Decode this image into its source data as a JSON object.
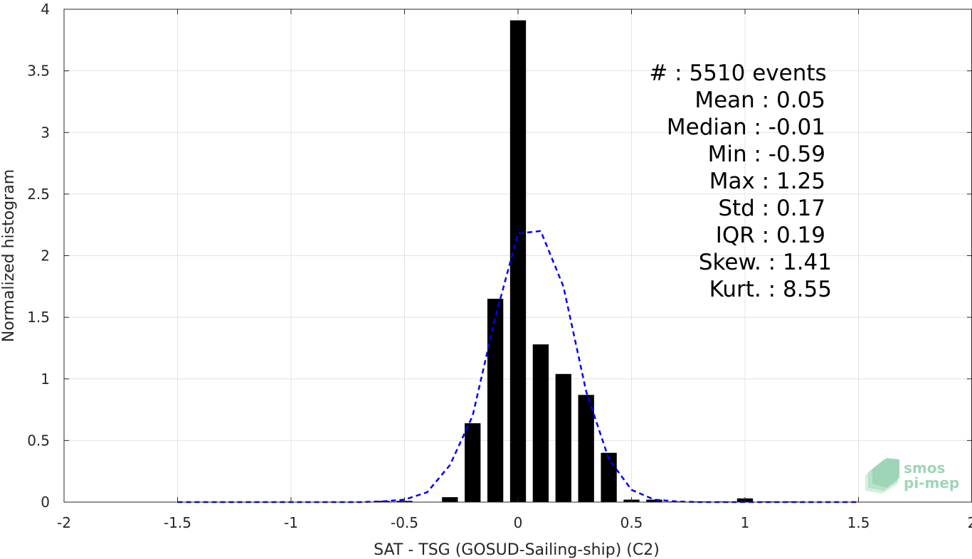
{
  "chart_data": {
    "type": "bar",
    "xlabel": "SAT - TSG (GOSUD-Sailing-ship) (C2)",
    "ylabel": "Normalized histogram",
    "xlim": [
      -2,
      2
    ],
    "ylim": [
      0,
      4
    ],
    "xticks": [
      "-2",
      "-1.5",
      "-1",
      "-0.5",
      "0",
      "0.5",
      "1",
      "1.5",
      "2"
    ],
    "yticks": [
      "0",
      "0.5",
      "1",
      "1.5",
      "2",
      "2.5",
      "3",
      "3.5",
      "4"
    ],
    "grid": true,
    "bar_color": "#000000",
    "bars": [
      {
        "x": -0.6,
        "y": 0.01
      },
      {
        "x": -0.5,
        "y": 0.01
      },
      {
        "x": -0.3,
        "y": 0.04
      },
      {
        "x": -0.2,
        "y": 0.64
      },
      {
        "x": -0.1,
        "y": 1.65
      },
      {
        "x": 0.0,
        "y": 3.91
      },
      {
        "x": 0.1,
        "y": 1.28
      },
      {
        "x": 0.2,
        "y": 1.04
      },
      {
        "x": 0.3,
        "y": 0.87
      },
      {
        "x": 0.4,
        "y": 0.4
      },
      {
        "x": 0.5,
        "y": 0.02
      },
      {
        "x": 0.6,
        "y": 0.02
      },
      {
        "x": 0.7,
        "y": 0.005
      },
      {
        "x": 0.8,
        "y": 0.005
      },
      {
        "x": 0.9,
        "y": 0.005
      },
      {
        "x": 1.0,
        "y": 0.03
      },
      {
        "x": 1.1,
        "y": 0.005
      },
      {
        "x": 1.2,
        "y": 0.005
      }
    ],
    "fit_curve": {
      "style": "dashed",
      "color": "#0000ff",
      "x": [
        -1.5,
        -1.4,
        -1.3,
        -1.2,
        -1.1,
        -1.0,
        -0.9,
        -0.8,
        -0.7,
        -0.6,
        -0.5,
        -0.4,
        -0.3,
        -0.2,
        -0.1,
        0.0,
        0.1,
        0.2,
        0.3,
        0.4,
        0.5,
        0.6,
        0.7,
        0.8,
        0.9,
        1.0,
        1.1,
        1.2,
        1.3,
        1.4,
        1.5
      ],
      "y": [
        0,
        0,
        0,
        0,
        0,
        0,
        0,
        0,
        0,
        0.005,
        0.02,
        0.08,
        0.3,
        0.7,
        1.5,
        2.18,
        2.2,
        1.75,
        0.9,
        0.35,
        0.1,
        0.02,
        0.005,
        0,
        0,
        0,
        0,
        0,
        0,
        0,
        0
      ]
    }
  },
  "stats": [
    {
      "label": "#  : 5510 events"
    },
    {
      "label": "Mean : 0.05"
    },
    {
      "label": "Median : -0.01"
    },
    {
      "label": "Min : -0.59"
    },
    {
      "label": "Max : 1.25"
    },
    {
      "label": "Std : 0.17"
    },
    {
      "label": "IQR : 0.19"
    },
    {
      "label": "Skew. : 1.41"
    },
    {
      "label": "Kurt. : 8.55"
    }
  ],
  "logo": {
    "line1": "smos",
    "line2": "pi-mep",
    "color": "#7fc8a0"
  }
}
